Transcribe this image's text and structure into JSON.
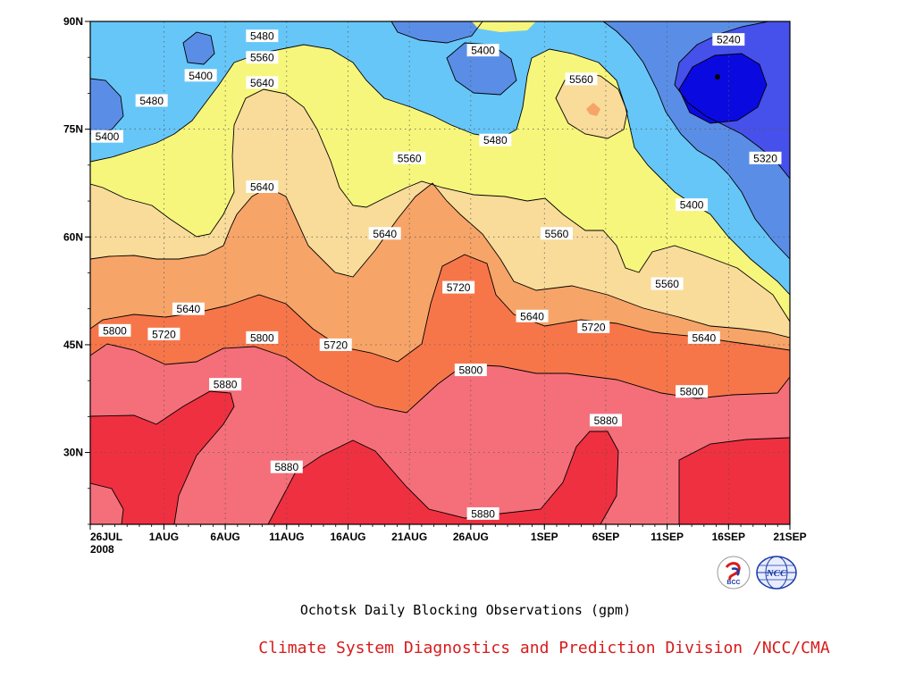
{
  "chart_data": {
    "type": "heatmap",
    "title": "Ochotsk Daily Blocking Observations (gpm)",
    "credit": "Climate System Diagnostics and Prediction Division /NCC/CMA",
    "x_axis": {
      "tick_labels": [
        "26JUL",
        "1AUG",
        "6AUG",
        "11AUG",
        "16AUG",
        "21AUG",
        "26AUG",
        "1SEP",
        "6SEP",
        "11SEP",
        "16SEP",
        "21SEP"
      ],
      "year_label": "2008",
      "range": [
        "2008-07-26",
        "2008-09-21"
      ]
    },
    "y_axis": {
      "tick_labels": [
        "30N",
        "45N",
        "60N",
        "75N",
        "90N"
      ],
      "tick_values": [
        30,
        45,
        60,
        75,
        90
      ],
      "range": [
        20,
        90
      ]
    },
    "grid": true,
    "contour_levels": [
      5240,
      5320,
      5400,
      5480,
      5560,
      5640,
      5720,
      5800,
      5880
    ],
    "band_colors": [
      "#0a0ae0",
      "#4650ea",
      "#5a8ee6",
      "#66c6f8",
      "#f6f67c",
      "#f9dc9a",
      "#f7a468",
      "#f6764a",
      "#f46f7a",
      "#ef3040"
    ],
    "contour_labels": [
      {
        "text": "5240",
        "date": "2008-09-16",
        "lat": 87.5
      },
      {
        "text": "5320",
        "date": "2008-09-19",
        "lat": 71
      },
      {
        "text": "5400",
        "date": "2008-09-13",
        "lat": 64.5
      },
      {
        "text": "5400",
        "date": "2008-08-27",
        "lat": 86
      },
      {
        "text": "5400",
        "date": "2008-07-26",
        "lat": 74
      },
      {
        "text": "5400",
        "date": "2008-08-04",
        "lat": 82.5
      },
      {
        "text": "5480",
        "date": "2008-08-09",
        "lat": 88
      },
      {
        "text": "5480",
        "date": "2008-07-31",
        "lat": 79
      },
      {
        "text": "5480",
        "date": "2008-08-28",
        "lat": 73.5
      },
      {
        "text": "5560",
        "date": "2008-08-09",
        "lat": 85
      },
      {
        "text": "5560",
        "date": "2008-09-04",
        "lat": 82
      },
      {
        "text": "5560",
        "date": "2008-08-21",
        "lat": 71
      },
      {
        "text": "5560",
        "date": "2008-09-02",
        "lat": 60.5
      },
      {
        "text": "5560",
        "date": "2008-09-11",
        "lat": 53.5
      },
      {
        "text": "5640",
        "date": "2008-08-09",
        "lat": 81.5
      },
      {
        "text": "5640",
        "date": "2008-08-09",
        "lat": 67
      },
      {
        "text": "5640",
        "date": "2008-08-19",
        "lat": 60.5
      },
      {
        "text": "5640",
        "date": "2008-08-03",
        "lat": 50
      },
      {
        "text": "5640",
        "date": "2008-08-31",
        "lat": 49
      },
      {
        "text": "5640",
        "date": "2008-09-14",
        "lat": 46
      },
      {
        "text": "5720",
        "date": "2008-08-25",
        "lat": 53
      },
      {
        "text": "5720",
        "date": "2008-08-01",
        "lat": 46.5
      },
      {
        "text": "5720",
        "date": "2008-09-05",
        "lat": 47.5
      },
      {
        "text": "5720",
        "date": "2008-08-15",
        "lat": 45
      },
      {
        "text": "5800",
        "date": "2008-07-28",
        "lat": 47
      },
      {
        "text": "5800",
        "date": "2008-08-09",
        "lat": 46
      },
      {
        "text": "5800",
        "date": "2008-08-26",
        "lat": 41.5
      },
      {
        "text": "5800",
        "date": "2008-09-13",
        "lat": 38.5
      },
      {
        "text": "5880",
        "date": "2008-08-06",
        "lat": 39.5
      },
      {
        "text": "5880",
        "date": "2008-08-11",
        "lat": 28
      },
      {
        "text": "5880",
        "date": "2008-09-06",
        "lat": 34.5
      },
      {
        "text": "5880",
        "date": "2008-08-27",
        "lat": 21.5
      }
    ]
  },
  "logos": {
    "bcc": "BCC",
    "ncc": "NCC"
  }
}
